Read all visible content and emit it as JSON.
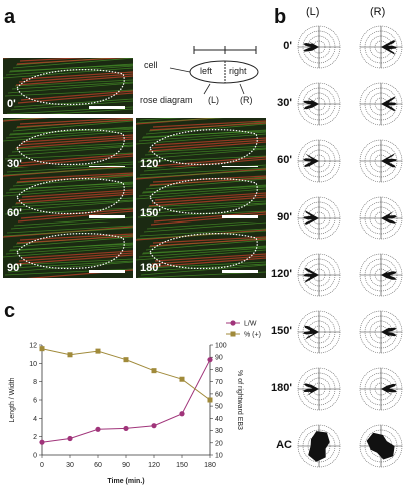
{
  "panel_a": {
    "letter": "a",
    "schematic": {
      "cell": "cell",
      "left": "left",
      "right": "right",
      "rose_diagram": "rose diagram",
      "l": "(L)",
      "r": "(R)"
    },
    "images": [
      {
        "label": "0'"
      },
      {
        "label": "30'"
      },
      {
        "label": "120'"
      },
      {
        "label": "60'"
      },
      {
        "label": "150'"
      },
      {
        "label": "90'"
      },
      {
        "label": "180'"
      }
    ]
  },
  "panel_b": {
    "letter": "b",
    "col_left": "(L)",
    "col_right": "(R)",
    "rows": [
      "0'",
      "30'",
      "60'",
      "90'",
      "120'",
      "150'",
      "180'",
      "AC"
    ]
  },
  "panel_c": {
    "letter": "c",
    "chart_data": {
      "type": "line",
      "x": [
        0,
        30,
        60,
        90,
        120,
        150,
        180
      ],
      "xticks": [
        "0",
        "30",
        "60",
        "90",
        "120",
        "150",
        "180"
      ],
      "xlabel": "Time (min.)",
      "ylabel_left": "Length / Width",
      "ylabel_right": "% of rightward EB3",
      "yticks_left": [
        "0",
        "2",
        "4",
        "6",
        "8",
        "10",
        "12"
      ],
      "yticks_right": [
        "10",
        "20",
        "30",
        "40",
        "50",
        "60",
        "70",
        "80",
        "90",
        "100"
      ],
      "ylim_left": [
        0,
        12
      ],
      "ylim_right": [
        10,
        100
      ],
      "series": [
        {
          "name": "L/W",
          "axis": "left",
          "color": "#a0347a",
          "values": [
            1.4,
            1.8,
            2.8,
            2.9,
            3.2,
            4.5,
            10.4
          ]
        },
        {
          "name": "% (+)",
          "axis": "right",
          "color": "#a08a3a",
          "values": [
            97,
            92,
            95,
            88,
            79,
            72,
            55
          ]
        }
      ],
      "legend_position": "top-right"
    }
  }
}
